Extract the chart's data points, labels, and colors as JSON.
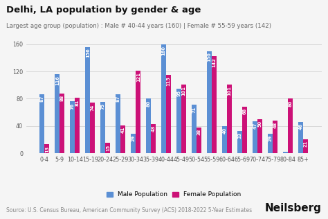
{
  "title": "Delhi, LA population by gender & age",
  "subtitle": "Largest age group (population) : Male # 40-44 years (160) | Female # 55-59 years (142)",
  "source": "Source: U.S. Census Bureau, American Community Survey (ACS) 2018-2022 5-Year Estimates",
  "brand": "Neilsberg",
  "categories": [
    "0-4",
    "5-9",
    "10-14",
    "15-19",
    "20-24",
    "25-29",
    "30-34",
    "35-39",
    "40-44",
    "45-49",
    "50-54",
    "55-59",
    "60-64",
    "65-69",
    "70-74",
    "75-79",
    "80-84",
    "85+"
  ],
  "male": [
    87,
    116,
    76,
    156,
    75,
    87,
    29,
    80,
    160,
    95,
    71,
    150,
    40,
    33,
    47,
    29,
    2,
    46
  ],
  "female": [
    13,
    88,
    81,
    74,
    15,
    41,
    121,
    43,
    115,
    101,
    38,
    142,
    101,
    68,
    50,
    48,
    80,
    21
  ],
  "male_color": "#5B8FD4",
  "female_color": "#CC1177",
  "bg_color": "#f5f5f5",
  "plot_bg_color": "#f5f5f5",
  "ylim": [
    0,
    175
  ],
  "yticks": [
    0,
    40,
    80,
    120,
    160
  ],
  "bar_width": 0.32,
  "title_fontsize": 9.5,
  "subtitle_fontsize": 6.2,
  "source_fontsize": 5.5,
  "brand_fontsize": 11,
  "tick_fontsize": 5.8,
  "legend_fontsize": 6.5,
  "value_fontsize": 4.8
}
